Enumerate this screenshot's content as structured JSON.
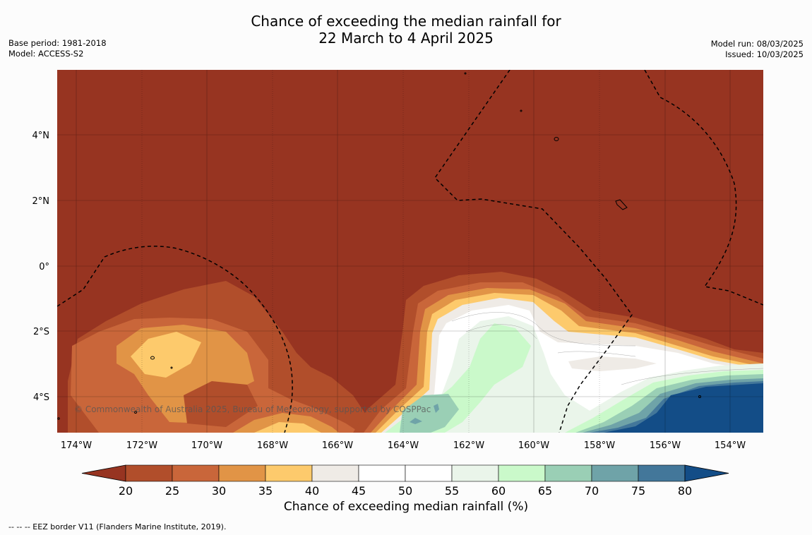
{
  "title": {
    "line1": "Chance of exceeding the median rainfall for",
    "line2": "22 March to 4 April 2025"
  },
  "meta_left": {
    "base_period": "Base period: 1981-2018",
    "model": "Model: ACCESS-S2"
  },
  "meta_right": {
    "model_run": "Model run: 08/03/2025",
    "issued": "Issued: 10/03/2025"
  },
  "map": {
    "x_ticks": [
      "174°W",
      "172°W",
      "170°W",
      "168°W",
      "166°W",
      "164°W",
      "162°W",
      "160°W",
      "158°W",
      "156°W",
      "154°W"
    ],
    "y_ticks": [
      "4°N",
      "2°N",
      "0°",
      "2°S",
      "4°S"
    ],
    "copyright": "© Commonwealth of Australia 2025, Bureau of Meteorology, supported by COSPPac"
  },
  "colorbar": {
    "ticks": [
      "20",
      "25",
      "30",
      "35",
      "40",
      "45",
      "50",
      "55",
      "60",
      "65",
      "70",
      "75",
      "80"
    ],
    "colors": [
      "#973421",
      "#b14e2b",
      "#c9663a",
      "#e19446",
      "#fdca6c",
      "#efebe6",
      "#ffffff",
      "#ffffff",
      "#eaf5ea",
      "#caf9ca",
      "#9acfb5",
      "#6fa3a8",
      "#43779a",
      "#134d87"
    ],
    "title": "Chance of exceeding median rainfall (%)"
  },
  "footer": {
    "eez": "--  --  -- EEZ border V11 (Flanders Marine Institute, 2019)."
  }
}
